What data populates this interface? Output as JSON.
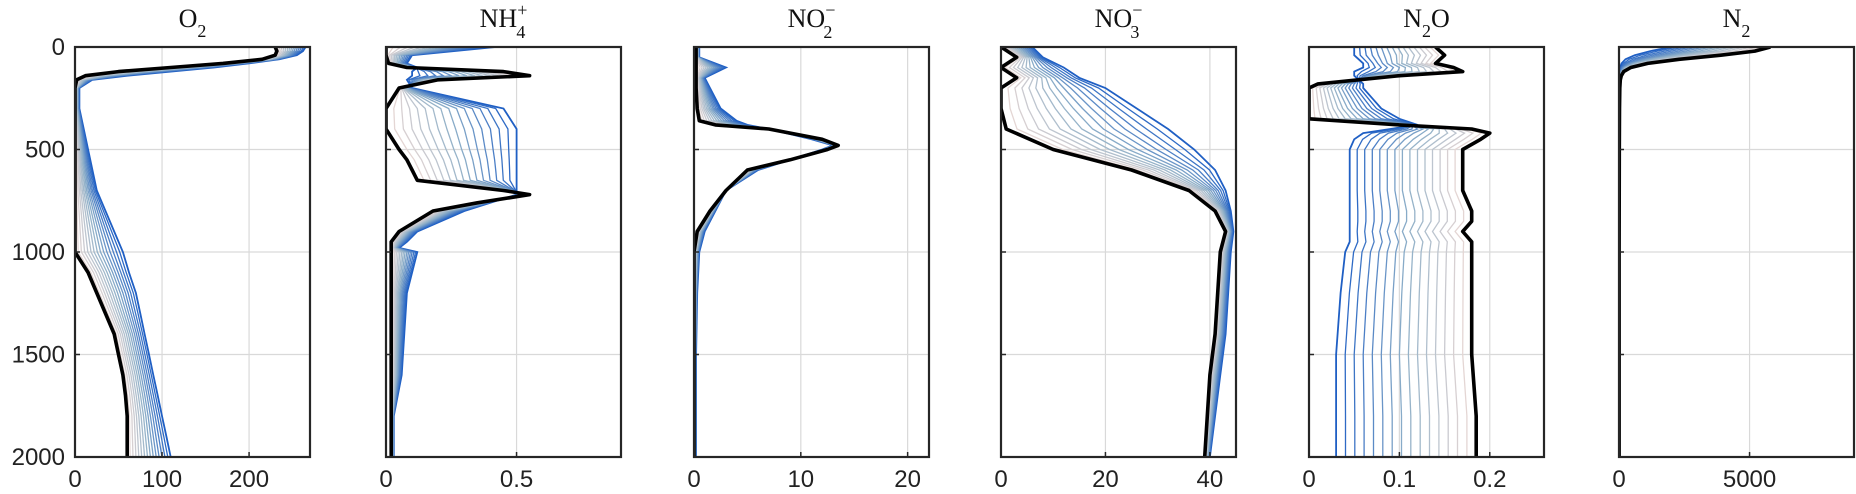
{
  "chart_data": [
    {
      "type": "line",
      "title": "O2",
      "title_html": "O<tspan baseline-shift='sub' font-size='18'>2</tspan>",
      "xlim": [
        0,
        270
      ],
      "ylim": [
        0,
        2000
      ],
      "y_reversed": true,
      "xticks": [
        0,
        100,
        200
      ],
      "yticks": [
        0,
        500,
        1000,
        1500,
        2000
      ],
      "profiles": {
        "depth": [
          0,
          20,
          40,
          60,
          80,
          100,
          120,
          140,
          160,
          200,
          300,
          500,
          700,
          900,
          1000,
          1100,
          1200,
          1300,
          1400,
          1500,
          1600,
          1700,
          1800,
          1900,
          2000
        ],
        "initial": [
          265,
          262,
          255,
          235,
          200,
          160,
          110,
          60,
          20,
          5,
          5,
          15,
          25,
          45,
          55,
          62,
          70,
          75,
          80,
          85,
          90,
          95,
          100,
          105,
          110
        ],
        "final": [
          230,
          232,
          230,
          215,
          170,
          110,
          50,
          12,
          2,
          0,
          0,
          0,
          0,
          0,
          0,
          15,
          25,
          35,
          45,
          50,
          55,
          58,
          60,
          60,
          60
        ]
      }
    },
    {
      "type": "line",
      "title": "NH4+",
      "title_html": "NH<tspan dy='-11' font-size='18'>+</tspan><tspan dx='-11' dy='22' font-size='18'>4</tspan>",
      "xlim": [
        0,
        0.9
      ],
      "ylim": [
        0,
        2000
      ],
      "y_reversed": true,
      "xticks": [
        0,
        0.5
      ],
      "yticks": [
        0,
        500,
        1000,
        1500,
        2000
      ],
      "profiles": {
        "depth": [
          0,
          40,
          80,
          100,
          120,
          140,
          160,
          200,
          300,
          400,
          500,
          550,
          600,
          650,
          700,
          720,
          760,
          800,
          900,
          950,
          980,
          1000,
          1200,
          1400,
          1600,
          1800,
          2000
        ],
        "initial": [
          0.42,
          0.1,
          0.08,
          0.12,
          0.1,
          0.1,
          0.08,
          0.1,
          0.45,
          0.5,
          0.5,
          0.5,
          0.5,
          0.5,
          0.5,
          0.5,
          0.4,
          0.3,
          0.12,
          0.08,
          0.05,
          0.12,
          0.08,
          0.07,
          0.06,
          0.03,
          0.03
        ],
        "final": [
          0.0,
          0.0,
          0.01,
          0.08,
          0.45,
          0.55,
          0.2,
          0.05,
          0.0,
          0.0,
          0.05,
          0.08,
          0.1,
          0.12,
          0.45,
          0.55,
          0.35,
          0.18,
          0.05,
          0.02,
          0.02,
          0.02,
          0.02,
          0.02,
          0.02,
          0.02,
          0.02
        ]
      }
    },
    {
      "type": "line",
      "title": "NO2-",
      "title_html": "NO<tspan dy='-11' font-size='18'>−</tspan><tspan dx='-12' dy='22' font-size='18'>2</tspan>",
      "xlim": [
        0,
        22
      ],
      "ylim": [
        0,
        2000
      ],
      "y_reversed": true,
      "xticks": [
        0,
        10,
        20
      ],
      "yticks": [
        0,
        500,
        1000,
        1500,
        2000
      ],
      "profiles": {
        "depth": [
          0,
          50,
          100,
          150,
          200,
          300,
          360,
          380,
          400,
          450,
          480,
          500,
          550,
          600,
          700,
          800,
          900,
          1000,
          1200,
          1500,
          2000
        ],
        "initial": [
          0.5,
          0.5,
          3,
          1,
          1.5,
          2.5,
          4,
          5,
          7,
          11,
          13,
          12,
          9,
          6,
          3,
          2,
          1,
          0.5,
          0.3,
          0.2,
          0.2
        ],
        "final": [
          0.2,
          0.2,
          0.2,
          0.2,
          0.2,
          0.3,
          0.5,
          2,
          7,
          12,
          13.5,
          12.5,
          9,
          5,
          3,
          1.5,
          0.3,
          0,
          0,
          0,
          0
        ]
      }
    },
    {
      "type": "line",
      "title": "NO3-",
      "title_html": "NO<tspan dy='-11' font-size='18'>−</tspan><tspan dx='-12' dy='22' font-size='18'>3</tspan>",
      "xlim": [
        0,
        45
      ],
      "ylim": [
        0,
        2000
      ],
      "y_reversed": true,
      "xticks": [
        0,
        20,
        40
      ],
      "yticks": [
        0,
        500,
        1000,
        1500,
        2000
      ],
      "profiles": {
        "depth": [
          0,
          50,
          100,
          150,
          200,
          300,
          400,
          500,
          600,
          700,
          800,
          900,
          1000,
          1200,
          1400,
          1600,
          1800,
          2000
        ],
        "initial": [
          6,
          8,
          12,
          15,
          20,
          26,
          32,
          37,
          41,
          43,
          44,
          44.5,
          44,
          43.5,
          43,
          42,
          41,
          40
        ],
        "final": [
          0,
          3,
          0,
          3,
          0,
          0,
          1,
          10,
          25,
          36,
          41,
          43,
          42,
          41.5,
          41,
          40,
          39.5,
          39
        ]
      }
    },
    {
      "type": "line",
      "title": "N2O",
      "title_html": "N<tspan baseline-shift='sub' font-size='18'>2</tspan>O",
      "xlim": [
        0,
        0.26
      ],
      "ylim": [
        0,
        2000
      ],
      "y_reversed": true,
      "xticks": [
        0,
        0.1,
        0.2
      ],
      "yticks": [
        0,
        500,
        1000,
        1500,
        2000
      ],
      "profiles": {
        "depth": [
          0,
          40,
          80,
          100,
          120,
          140,
          180,
          200,
          250,
          300,
          350,
          380,
          400,
          420,
          450,
          500,
          600,
          700,
          800,
          850,
          900,
          950,
          1000,
          1200,
          1500,
          1800,
          2000
        ],
        "initial": [
          0.05,
          0.05,
          0.06,
          0.06,
          0.05,
          0.05,
          0.06,
          0.06,
          0.07,
          0.08,
          0.1,
          0.12,
          0.09,
          0.06,
          0.05,
          0.045,
          0.045,
          0.045,
          0.045,
          0.045,
          0.045,
          0.045,
          0.04,
          0.035,
          0.03,
          0.03,
          0.03
        ],
        "final": [
          0.14,
          0.15,
          0.14,
          0.16,
          0.17,
          0.1,
          0.01,
          0.0,
          0.0,
          0.0,
          0.0,
          0.1,
          0.18,
          0.2,
          0.19,
          0.17,
          0.17,
          0.17,
          0.18,
          0.18,
          0.17,
          0.18,
          0.18,
          0.18,
          0.18,
          0.185,
          0.185
        ]
      }
    },
    {
      "type": "line",
      "title": "N2",
      "title_html": "N<tspan baseline-shift='sub' font-size='18'>2</tspan>",
      "xlim": [
        0,
        9000
      ],
      "ylim": [
        0,
        2000
      ],
      "y_reversed": true,
      "xticks": [
        0,
        5000
      ],
      "yticks": [
        0,
        500,
        1000,
        1500,
        2000
      ],
      "profiles": {
        "depth": [
          0,
          20,
          40,
          60,
          80,
          100,
          120,
          140,
          160,
          200,
          300,
          500,
          1000,
          1500,
          2000
        ],
        "initial": [
          2000,
          1200,
          600,
          250,
          100,
          40,
          20,
          10,
          5,
          3,
          2,
          2,
          2,
          2,
          2
        ],
        "final": [
          5800,
          5200,
          3900,
          2300,
          1100,
          450,
          180,
          90,
          50,
          30,
          20,
          10,
          5,
          5,
          5
        ]
      }
    }
  ],
  "style": {
    "initial_color": "#1f5fc4",
    "mid_color": "#8fb0c8",
    "late_color": "#f1dcd6",
    "final_color": "#000000",
    "n_profiles": 16
  }
}
